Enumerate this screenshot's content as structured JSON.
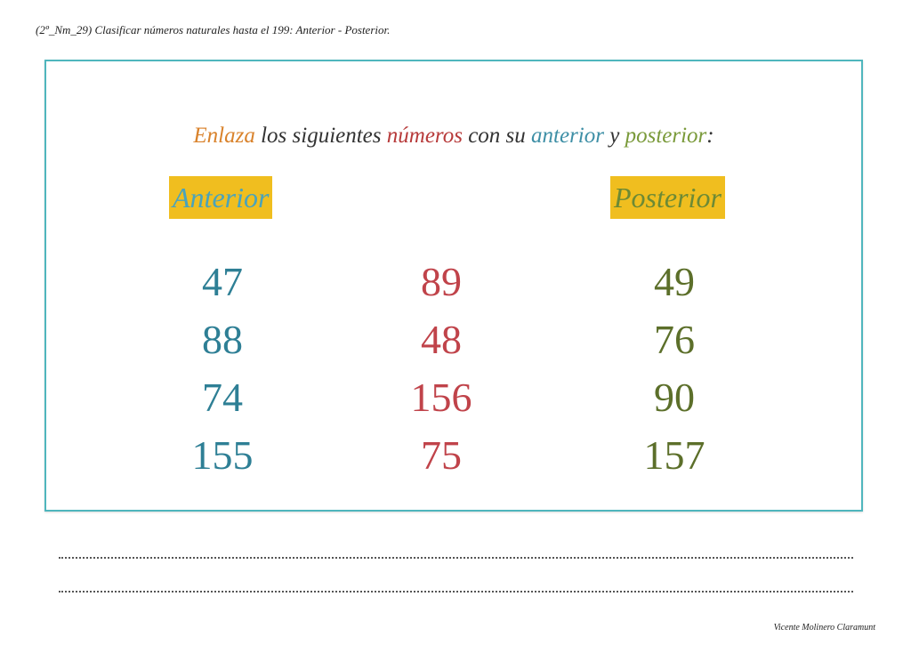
{
  "header": {
    "title": "(2º_Nm_29) Clasificar números naturales hasta el 199: Anterior - Posterior."
  },
  "instruction": {
    "words": [
      {
        "text": "Enlaza",
        "color": "#d9822b"
      },
      {
        "text": " los siguientes ",
        "color": "#333333"
      },
      {
        "text": "números",
        "color": "#b73a3a"
      },
      {
        "text": " con su ",
        "color": "#333333"
      },
      {
        "text": "anterior",
        "color": "#3e8fa6"
      },
      {
        "text": " y ",
        "color": "#333333"
      },
      {
        "text": "posterior",
        "color": "#7a9a3a"
      },
      {
        "text": ":",
        "color": "#333333"
      }
    ]
  },
  "labels": {
    "anterior": "Anterior",
    "posterior": "Posterior"
  },
  "columns": {
    "anterior": [
      "47",
      "88",
      "74",
      "155"
    ],
    "middle": [
      "89",
      "48",
      "156",
      "75"
    ],
    "posterior": [
      "49",
      "76",
      "90",
      "157"
    ]
  },
  "answer_lines": 2,
  "footer": {
    "author": "Vicente Molinero Claramunt"
  }
}
